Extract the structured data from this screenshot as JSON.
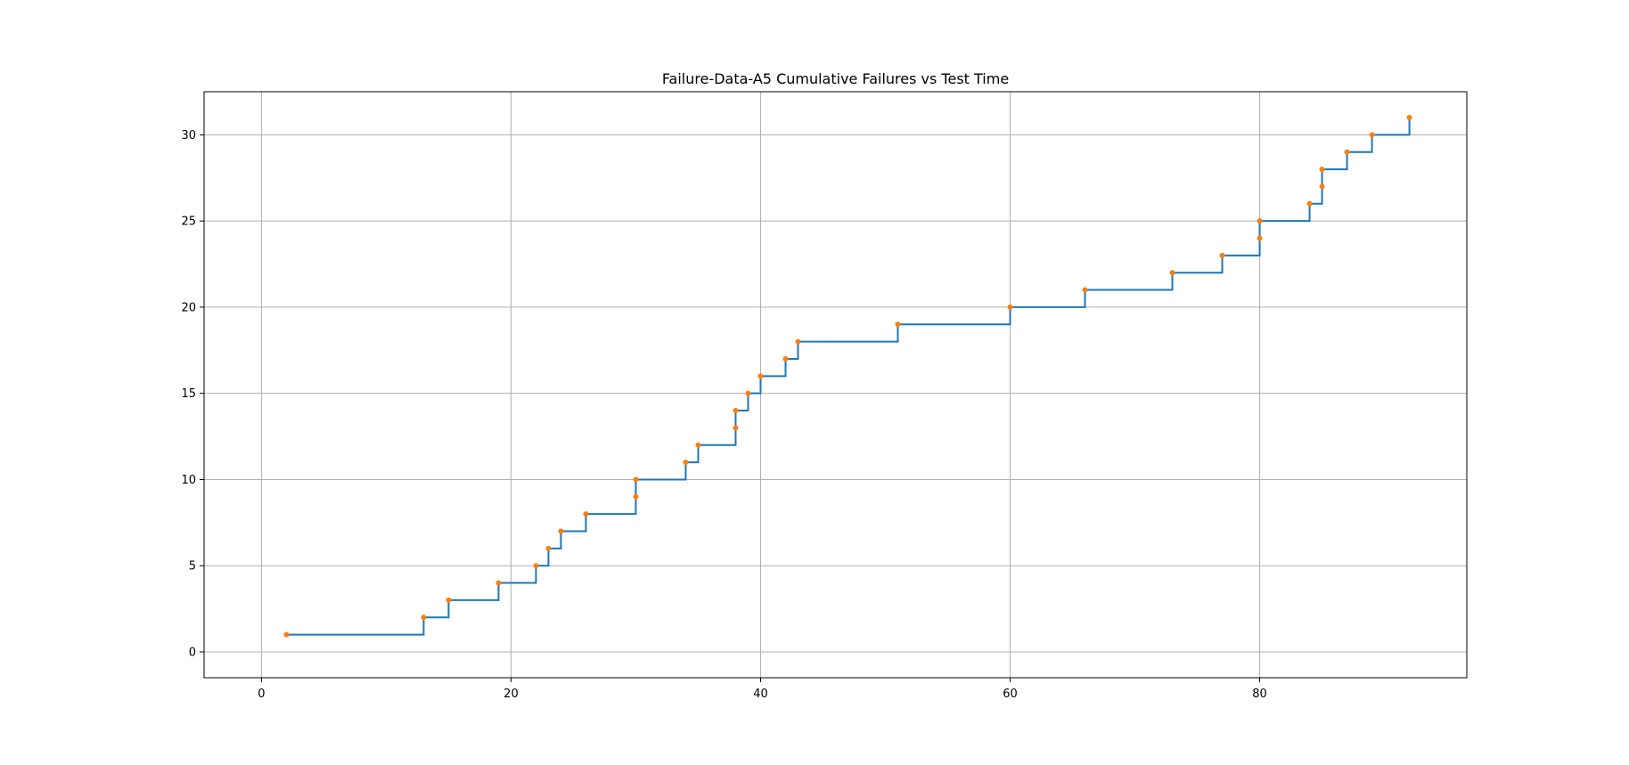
{
  "chart_data": {
    "type": "line",
    "drawstyle": "steps-post",
    "title": "Failure-Data-A5 Cumulative Failures vs Test Time",
    "xlabel": "",
    "ylabel": "",
    "xlim": [
      -4.6,
      96.6
    ],
    "ylim": [
      -1.5,
      32.5
    ],
    "grid": true,
    "x_ticks": [
      0,
      20,
      40,
      60,
      80
    ],
    "y_ticks": [
      0,
      5,
      10,
      15,
      20,
      25,
      30
    ],
    "x_tick_labels": [
      "0",
      "20",
      "40",
      "60",
      "80"
    ],
    "y_tick_labels": [
      "0",
      "5",
      "10",
      "15",
      "20",
      "25",
      "30"
    ],
    "series": [
      {
        "kind": "step-line",
        "color": "#1f77b4",
        "x": [
          2,
          13,
          15,
          19,
          22,
          23,
          24,
          26,
          30,
          30,
          34,
          35,
          38,
          38,
          39,
          40,
          42,
          43,
          51,
          60,
          66,
          73,
          77,
          80,
          80,
          84,
          85,
          85,
          87,
          89,
          92
        ],
        "y": [
          1,
          2,
          3,
          4,
          5,
          6,
          7,
          8,
          9,
          10,
          11,
          12,
          13,
          14,
          15,
          16,
          17,
          18,
          19,
          20,
          21,
          22,
          23,
          24,
          25,
          26,
          27,
          28,
          29,
          30,
          31
        ]
      },
      {
        "kind": "markers",
        "color": "#ff7f0e",
        "x": [
          2,
          13,
          15,
          19,
          22,
          23,
          24,
          26,
          30,
          30,
          34,
          35,
          38,
          38,
          39,
          40,
          42,
          43,
          51,
          60,
          66,
          73,
          77,
          80,
          80,
          84,
          85,
          85,
          87,
          89,
          92
        ],
        "y": [
          1,
          2,
          3,
          4,
          5,
          6,
          7,
          8,
          9,
          10,
          11,
          12,
          13,
          14,
          15,
          16,
          17,
          18,
          19,
          20,
          21,
          22,
          23,
          24,
          25,
          26,
          27,
          28,
          29,
          30,
          31
        ]
      }
    ],
    "colors": {
      "grid": "#b0b0b0",
      "axes": "#000000",
      "line": "#1f77b4",
      "marker": "#ff7f0e"
    }
  }
}
